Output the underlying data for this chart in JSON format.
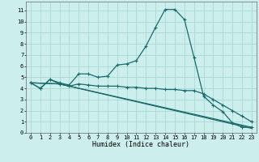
{
  "xlabel": "Humidex (Indice chaleur)",
  "background_color": "#cceeed",
  "grid_color": "#aad8d6",
  "line_color": "#1a6b6b",
  "xlim": [
    -0.5,
    23.5
  ],
  "ylim": [
    0,
    11.8
  ],
  "xticks": [
    0,
    1,
    2,
    3,
    4,
    5,
    6,
    7,
    8,
    9,
    10,
    11,
    12,
    13,
    14,
    15,
    16,
    17,
    18,
    19,
    20,
    21,
    22,
    23
  ],
  "yticks": [
    0,
    1,
    2,
    3,
    4,
    5,
    6,
    7,
    8,
    9,
    10,
    11
  ],
  "series1_x": [
    0,
    1,
    2,
    3,
    4,
    5,
    6,
    7,
    8,
    9,
    10,
    11,
    12,
    13,
    14,
    15,
    16,
    17,
    18,
    19,
    20,
    21,
    22,
    23
  ],
  "series1_y": [
    4.5,
    4.0,
    4.8,
    4.5,
    4.3,
    5.3,
    5.3,
    5.0,
    5.1,
    6.1,
    6.2,
    6.5,
    7.8,
    9.5,
    11.1,
    11.1,
    10.2,
    6.8,
    3.3,
    2.5,
    1.9,
    0.9,
    0.5,
    0.5
  ],
  "series2_x": [
    0,
    1,
    2,
    3,
    4,
    5,
    6,
    7,
    8,
    9,
    10,
    11,
    12,
    13,
    14,
    15,
    16,
    17,
    18,
    19,
    20,
    21,
    22,
    23
  ],
  "series2_y": [
    4.5,
    4.0,
    4.8,
    4.4,
    4.2,
    4.4,
    4.3,
    4.2,
    4.2,
    4.2,
    4.1,
    4.1,
    4.0,
    4.0,
    3.9,
    3.9,
    3.8,
    3.8,
    3.5,
    3.0,
    2.5,
    2.0,
    1.5,
    1.0
  ],
  "series3_x": [
    0,
    3,
    23
  ],
  "series3_y": [
    4.5,
    4.4,
    0.5
  ],
  "series4_x": [
    0,
    3,
    23
  ],
  "series4_y": [
    4.5,
    4.4,
    0.4
  ]
}
